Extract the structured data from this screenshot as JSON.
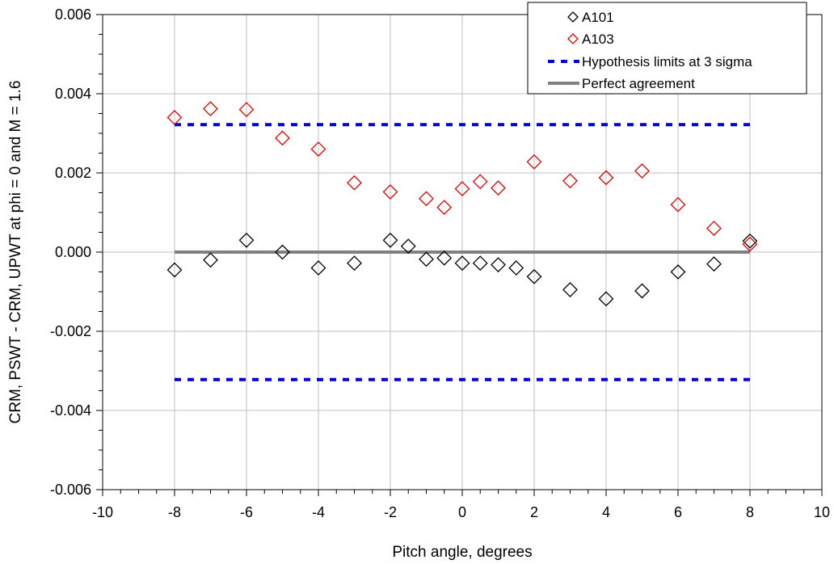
{
  "chart_data": {
    "type": "scatter",
    "xlabel": "Pitch angle, degrees",
    "ylabel": "CRM, PSWT - CRM, UPWT at phi = 0 and M = 1.6",
    "xlim": [
      -10,
      10
    ],
    "ylim": [
      -0.006,
      0.006
    ],
    "xticks": [
      -10,
      -8,
      -6,
      -4,
      -2,
      0,
      2,
      4,
      6,
      8,
      10
    ],
    "xtick_labels": [
      "-10",
      "-8",
      "-6",
      "-4",
      "-2",
      "0",
      "2",
      "4",
      "6",
      "8",
      "10"
    ],
    "yticks": [
      -0.006,
      -0.004,
      -0.002,
      0.0,
      0.002,
      0.004,
      0.006
    ],
    "ytick_labels": [
      "-0.006",
      "-0.004",
      "-0.002",
      "0.000",
      "0.002",
      "0.004",
      "0.006"
    ],
    "grid": true,
    "legend_position": "top-right",
    "series": [
      {
        "name": "A101",
        "kind": "markers",
        "marker": "diamond",
        "color": "#000000",
        "x": [
          -8,
          -7,
          -6,
          -5,
          -4,
          -3,
          -2,
          -1.5,
          -1,
          -0.5,
          0,
          0.5,
          1,
          1.5,
          2,
          3,
          4,
          5,
          6,
          7,
          8
        ],
        "y": [
          -0.00045,
          -0.0002,
          0.0003,
          0.0,
          -0.0004,
          -0.00028,
          0.0003,
          0.00015,
          -0.00018,
          -0.00015,
          -0.00028,
          -0.00028,
          -0.00032,
          -0.0004,
          -0.00062,
          -0.00095,
          -0.00118,
          -0.00098,
          -0.0005,
          -0.0003,
          0.00028
        ]
      },
      {
        "name": "A103",
        "kind": "markers",
        "marker": "diamond",
        "color": "#e00000",
        "x": [
          -8,
          -7,
          -6,
          -5,
          -4,
          -3,
          -2,
          -1,
          -0.5,
          0,
          0.5,
          1,
          2,
          3,
          4,
          5,
          6,
          7,
          8
        ],
        "y": [
          0.0034,
          0.00362,
          0.0036,
          0.00288,
          0.0026,
          0.00175,
          0.00152,
          0.00135,
          0.00113,
          0.0016,
          0.00178,
          0.00162,
          0.00228,
          0.0018,
          0.00188,
          0.00205,
          0.0012,
          0.0006,
          0.0002
        ]
      },
      {
        "name": "Hypothesis limits at 3 sigma",
        "kind": "dashed-lines",
        "color": "#0000dd",
        "segments": [
          {
            "x": [
              -8,
              8
            ],
            "y": [
              0.00322,
              0.00322
            ]
          },
          {
            "x": [
              -8,
              8
            ],
            "y": [
              -0.00322,
              -0.00322
            ]
          }
        ]
      },
      {
        "name": "Perfect agreement",
        "kind": "line",
        "color": "#808080",
        "x": [
          -8,
          8
        ],
        "y": [
          0,
          0
        ]
      }
    ]
  }
}
